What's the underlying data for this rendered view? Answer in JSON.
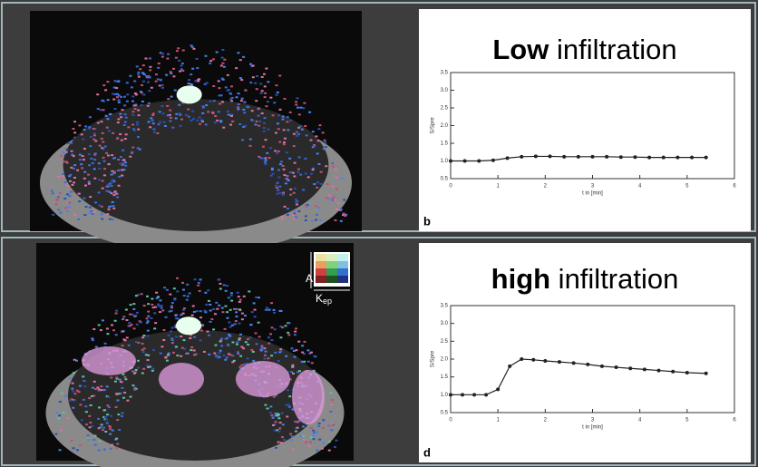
{
  "chart_data": [
    {
      "type": "line",
      "title": "Low infiltration",
      "panel_label": "b",
      "x_label": "t in [min]",
      "y_label": "S/Spre",
      "x": [
        0,
        0.3,
        0.6,
        0.9,
        1.2,
        1.5,
        1.8,
        2.1,
        2.4,
        2.7,
        3.0,
        3.3,
        3.6,
        3.9,
        4.2,
        4.5,
        4.8,
        5.1,
        5.4
      ],
      "series": [
        {
          "color": "#222222",
          "values": [
            1.0,
            1.0,
            1.0,
            1.02,
            1.08,
            1.12,
            1.13,
            1.13,
            1.12,
            1.12,
            1.12,
            1.12,
            1.11,
            1.11,
            1.1,
            1.1,
            1.1,
            1.1,
            1.1
          ]
        }
      ],
      "xlim": [
        0,
        6
      ],
      "xticks": [
        0,
        1,
        2,
        3,
        4,
        5,
        6
      ],
      "ylim": [
        0.5,
        3.5
      ],
      "yticks": [
        0.5,
        {
          "value": 1,
          "label": "1.0"
        },
        1.5,
        {
          "value": 2,
          "label": "2.0"
        },
        2.5,
        {
          "value": 3,
          "label": "3.0"
        },
        3.5
      ]
    },
    {
      "type": "line",
      "title": "high infiltration",
      "panel_label": "d",
      "x_label": "t in [min]",
      "y_label": "S/Spre",
      "x": [
        0,
        0.25,
        0.5,
        0.75,
        1.0,
        1.25,
        1.5,
        1.75,
        2.0,
        2.3,
        2.6,
        2.9,
        3.2,
        3.5,
        3.8,
        4.1,
        4.4,
        4.7,
        5.0,
        5.4
      ],
      "series": [
        {
          "color": "#222222",
          "values": [
            1.0,
            1.0,
            1.0,
            1.0,
            1.15,
            1.8,
            2.0,
            1.98,
            1.95,
            1.92,
            1.89,
            1.85,
            1.8,
            1.77,
            1.74,
            1.71,
            1.68,
            1.65,
            1.62,
            1.6
          ]
        }
      ],
      "xlim": [
        0,
        6
      ],
      "xticks": [
        0,
        1,
        2,
        3,
        4,
        5,
        6
      ],
      "ylim": [
        0.5,
        3.5
      ],
      "yticks": [
        0.5,
        {
          "value": 1,
          "label": "1.0"
        },
        1.5,
        {
          "value": 2,
          "label": "2.0"
        },
        2.5,
        {
          "value": 3,
          "label": "3.0"
        },
        3.5
      ]
    }
  ],
  "color_key": {
    "y_label": "A",
    "x_label": "K",
    "x_label_sub": "ep"
  }
}
